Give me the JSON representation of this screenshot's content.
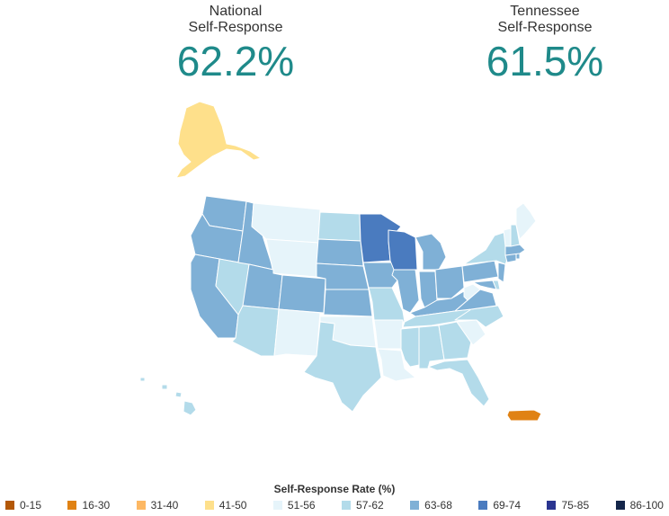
{
  "national": {
    "label_line1": "National",
    "label_line2": "Self-Response",
    "value": "62.2%"
  },
  "state": {
    "label_line1": "Tennessee",
    "label_line2": "Self-Response",
    "value": "61.5%"
  },
  "legend": {
    "title": "Self-Response Rate (%)",
    "items": [
      {
        "label": "0-15",
        "color": "#b35806"
      },
      {
        "label": "16-30",
        "color": "#e08214"
      },
      {
        "label": "31-40",
        "color": "#fdb863"
      },
      {
        "label": "41-50",
        "color": "#fee08b"
      },
      {
        "label": "51-56",
        "color": "#e6f4fa"
      },
      {
        "label": "57-62",
        "color": "#b3dbea"
      },
      {
        "label": "63-68",
        "color": "#7fb0d6"
      },
      {
        "label": "69-74",
        "color": "#4a7bbf"
      },
      {
        "label": "75-85",
        "color": "#2a3590"
      },
      {
        "label": "86-100",
        "color": "#14264a"
      }
    ]
  }
}
